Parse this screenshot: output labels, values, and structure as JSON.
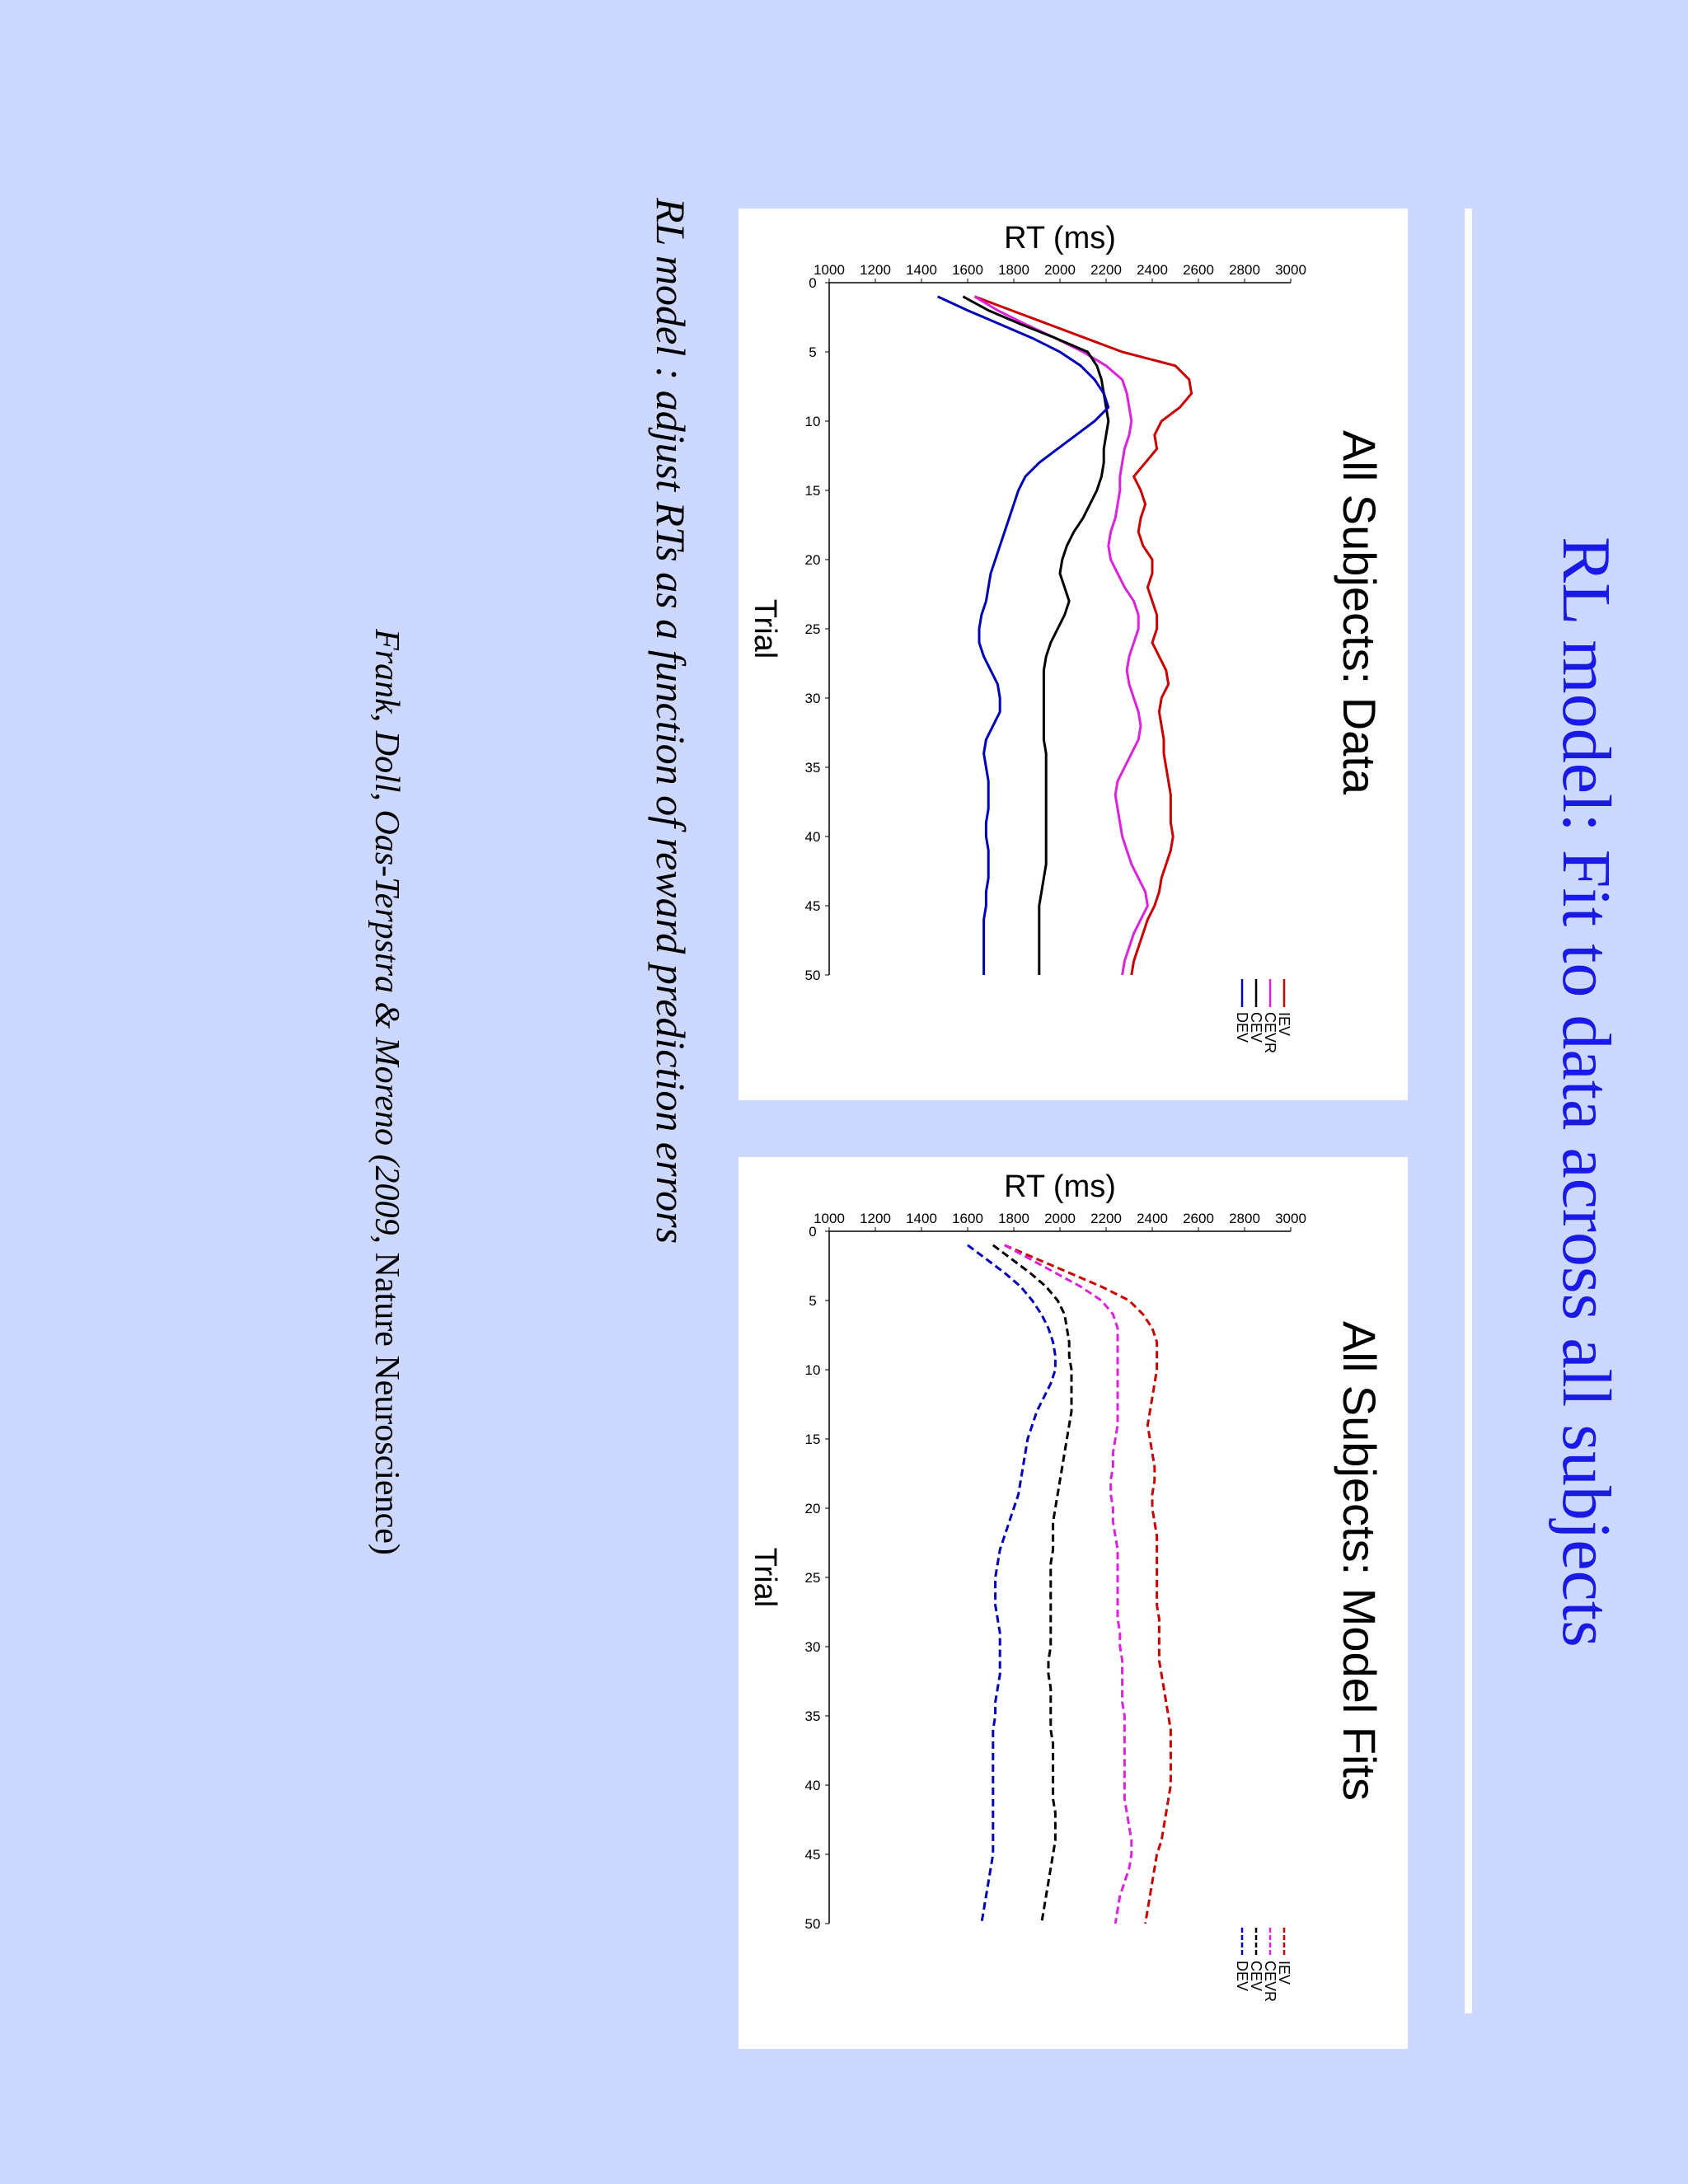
{
  "slide": {
    "title": "RL model: Fit to data across all subjects",
    "caption": "RL model : adjust RTs as a function of reward prediction errors",
    "citation_italic": "Frank, Doll, Oas-Terpstra & Moreno (2009, ",
    "citation_plain": "Nature Neuroscience)"
  },
  "chart_data": [
    {
      "type": "line",
      "title": "All Subjects: Data",
      "xlabel": "Trial",
      "ylabel": "RT (ms)",
      "xlim": [
        0,
        50
      ],
      "ylim": [
        1000,
        3000
      ],
      "xticks": [
        "0",
        "5",
        "10",
        "15",
        "20",
        "25",
        "30",
        "35",
        "40",
        "45",
        "50"
      ],
      "yticks": [
        "1000",
        "1200",
        "1400",
        "1600",
        "1800",
        "2000",
        "2200",
        "2400",
        "2600",
        "2800",
        "3000"
      ],
      "line_style": "solid",
      "legend_position": "top-right",
      "x": [
        1,
        2,
        3,
        4,
        5,
        6,
        7,
        8,
        9,
        10,
        11,
        12,
        13,
        14,
        15,
        16,
        17,
        18,
        19,
        20,
        21,
        22,
        23,
        24,
        25,
        26,
        27,
        28,
        29,
        30,
        31,
        32,
        33,
        34,
        35,
        36,
        37,
        38,
        39,
        40,
        41,
        42,
        43,
        44,
        45,
        46,
        47,
        48,
        49,
        50
      ],
      "series": [
        {
          "name": "IEV",
          "color": "#cc0000",
          "values": [
            1630,
            1790,
            1950,
            2110,
            2270,
            2500,
            2560,
            2570,
            2520,
            2440,
            2410,
            2420,
            2370,
            2320,
            2350,
            2370,
            2350,
            2340,
            2360,
            2400,
            2400,
            2380,
            2400,
            2420,
            2420,
            2400,
            2430,
            2460,
            2470,
            2440,
            2430,
            2440,
            2450,
            2450,
            2460,
            2470,
            2480,
            2480,
            2480,
            2490,
            2480,
            2460,
            2440,
            2430,
            2410,
            2380,
            2360,
            2340,
            2320,
            2310
          ]
        },
        {
          "name": "CEVR",
          "color": "#dd22dd",
          "values": [
            1630,
            1730,
            1850,
            1980,
            2100,
            2200,
            2270,
            2290,
            2300,
            2310,
            2300,
            2280,
            2270,
            2260,
            2260,
            2250,
            2240,
            2220,
            2210,
            2220,
            2250,
            2280,
            2320,
            2340,
            2340,
            2320,
            2300,
            2290,
            2300,
            2320,
            2340,
            2350,
            2340,
            2310,
            2280,
            2250,
            2240,
            2250,
            2260,
            2270,
            2290,
            2310,
            2340,
            2370,
            2380,
            2350,
            2320,
            2300,
            2280,
            2270
          ]
        },
        {
          "name": "CEV",
          "color": "#000000",
          "values": [
            1580,
            1690,
            1830,
            1980,
            2120,
            2160,
            2180,
            2190,
            2200,
            2210,
            2200,
            2190,
            2190,
            2180,
            2160,
            2130,
            2100,
            2060,
            2030,
            2010,
            2000,
            2020,
            2040,
            2020,
            1990,
            1960,
            1940,
            1930,
            1930,
            1930,
            1930,
            1930,
            1930,
            1940,
            1940,
            1940,
            1940,
            1940,
            1940,
            1940,
            1940,
            1940,
            1930,
            1920,
            1910,
            1910,
            1910,
            1910,
            1910,
            1910
          ]
        },
        {
          "name": "DEV",
          "color": "#0000bb",
          "values": [
            1470,
            1600,
            1740,
            1880,
            2000,
            2090,
            2150,
            2190,
            2210,
            2150,
            2070,
            1990,
            1910,
            1850,
            1820,
            1800,
            1780,
            1760,
            1740,
            1720,
            1700,
            1690,
            1680,
            1660,
            1650,
            1650,
            1670,
            1700,
            1730,
            1740,
            1740,
            1710,
            1680,
            1670,
            1680,
            1690,
            1690,
            1690,
            1680,
            1680,
            1690,
            1690,
            1690,
            1680,
            1680,
            1670,
            1670,
            1670,
            1670,
            1670
          ]
        }
      ]
    },
    {
      "type": "line",
      "title": "All Subjects: Model Fits",
      "xlabel": "Trial",
      "ylabel": "RT (ms)",
      "xlim": [
        0,
        50
      ],
      "ylim": [
        1000,
        3000
      ],
      "xticks": [
        "0",
        "5",
        "10",
        "15",
        "20",
        "25",
        "30",
        "35",
        "40",
        "45",
        "50"
      ],
      "yticks": [
        "1000",
        "1200",
        "1400",
        "1600",
        "1800",
        "2000",
        "2200",
        "2400",
        "2600",
        "2800",
        "3000"
      ],
      "line_style": "dashed",
      "legend_position": "top-right",
      "x": [
        1,
        2,
        3,
        4,
        5,
        6,
        7,
        8,
        9,
        10,
        11,
        12,
        13,
        14,
        15,
        16,
        17,
        18,
        19,
        20,
        21,
        22,
        23,
        24,
        25,
        26,
        27,
        28,
        29,
        30,
        31,
        32,
        33,
        34,
        35,
        36,
        37,
        38,
        39,
        40,
        41,
        42,
        43,
        44,
        45,
        46,
        47,
        48,
        49,
        50
      ],
      "series": [
        {
          "name": "IEV",
          "color": "#cc0000",
          "values": [
            1760,
            1900,
            2040,
            2180,
            2300,
            2360,
            2400,
            2420,
            2420,
            2420,
            2410,
            2400,
            2390,
            2380,
            2390,
            2400,
            2410,
            2410,
            2400,
            2400,
            2410,
            2420,
            2420,
            2420,
            2420,
            2420,
            2420,
            2430,
            2430,
            2430,
            2430,
            2440,
            2450,
            2460,
            2470,
            2480,
            2480,
            2480,
            2480,
            2480,
            2470,
            2460,
            2450,
            2440,
            2420,
            2410,
            2400,
            2390,
            2380,
            2370
          ]
        },
        {
          "name": "CEVR",
          "color": "#dd22dd",
          "values": [
            1760,
            1870,
            1980,
            2090,
            2180,
            2230,
            2250,
            2250,
            2250,
            2250,
            2250,
            2250,
            2250,
            2250,
            2240,
            2230,
            2230,
            2220,
            2220,
            2230,
            2230,
            2240,
            2250,
            2250,
            2250,
            2250,
            2250,
            2250,
            2260,
            2260,
            2270,
            2270,
            2270,
            2270,
            2280,
            2280,
            2280,
            2280,
            2280,
            2280,
            2280,
            2290,
            2300,
            2310,
            2310,
            2300,
            2280,
            2260,
            2250,
            2240
          ]
        },
        {
          "name": "CEV",
          "color": "#000000",
          "values": [
            1710,
            1790,
            1870,
            1940,
            1990,
            2020,
            2030,
            2040,
            2040,
            2050,
            2050,
            2050,
            2050,
            2040,
            2030,
            2020,
            2010,
            2000,
            1990,
            1980,
            1970,
            1970,
            1970,
            1960,
            1960,
            1960,
            1960,
            1960,
            1960,
            1960,
            1950,
            1950,
            1960,
            1960,
            1960,
            1960,
            1970,
            1970,
            1970,
            1970,
            1970,
            1980,
            1980,
            1980,
            1970,
            1960,
            1950,
            1940,
            1930,
            1920
          ]
        },
        {
          "name": "DEV",
          "color": "#0000bb",
          "values": [
            1600,
            1680,
            1760,
            1830,
            1880,
            1920,
            1950,
            1970,
            1980,
            1980,
            1960,
            1930,
            1900,
            1880,
            1860,
            1850,
            1840,
            1830,
            1820,
            1800,
            1780,
            1760,
            1740,
            1730,
            1720,
            1720,
            1720,
            1730,
            1740,
            1740,
            1740,
            1740,
            1730,
            1720,
            1720,
            1710,
            1710,
            1710,
            1710,
            1710,
            1710,
            1710,
            1710,
            1710,
            1710,
            1700,
            1690,
            1680,
            1670,
            1660
          ]
        }
      ]
    }
  ]
}
